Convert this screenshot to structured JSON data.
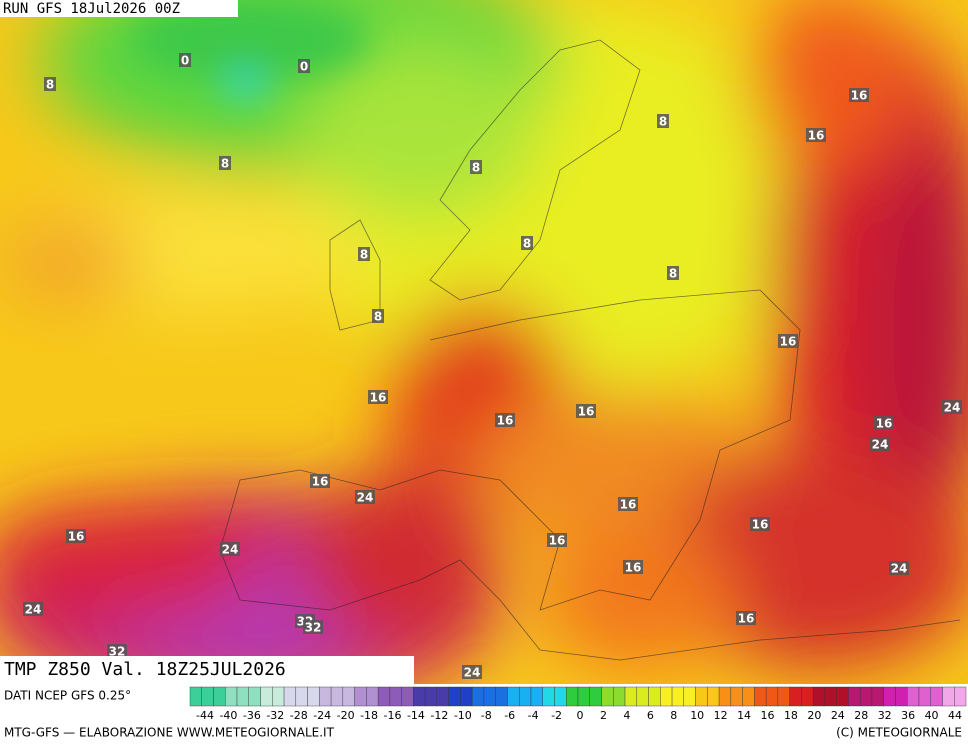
{
  "header": {
    "run": "RUN GFS 18Jul2026 00Z"
  },
  "map": {
    "labels": [
      "0",
      "0",
      "8",
      "8",
      "8",
      "8",
      "16",
      "16",
      "8",
      "8",
      "8",
      "8",
      "16",
      "16",
      "16",
      "16",
      "16",
      "24",
      "24",
      "16",
      "24",
      "16",
      "16",
      "24",
      "16",
      "16",
      "16",
      "24",
      "24",
      "32",
      "32",
      "16",
      "32",
      "24"
    ]
  },
  "footer": {
    "field": "TMP  Z850  Val. 18Z25JUL2026",
    "source": "DATI NCEP GFS 0.25°",
    "credit": "MTG-GFS — ELABORAZIONE WWW.METEOGIORNALE.IT",
    "copyright": "(C) METEOGIORNALE"
  },
  "colorbar": {
    "labels": [
      -44,
      -40,
      -36,
      -32,
      -28,
      -24,
      -20,
      -18,
      -16,
      -14,
      -12,
      -10,
      -8,
      -6,
      -4,
      -2,
      0,
      2,
      4,
      6,
      8,
      10,
      12,
      14,
      16,
      18,
      20,
      24,
      28,
      32,
      36,
      40,
      44
    ]
  }
}
